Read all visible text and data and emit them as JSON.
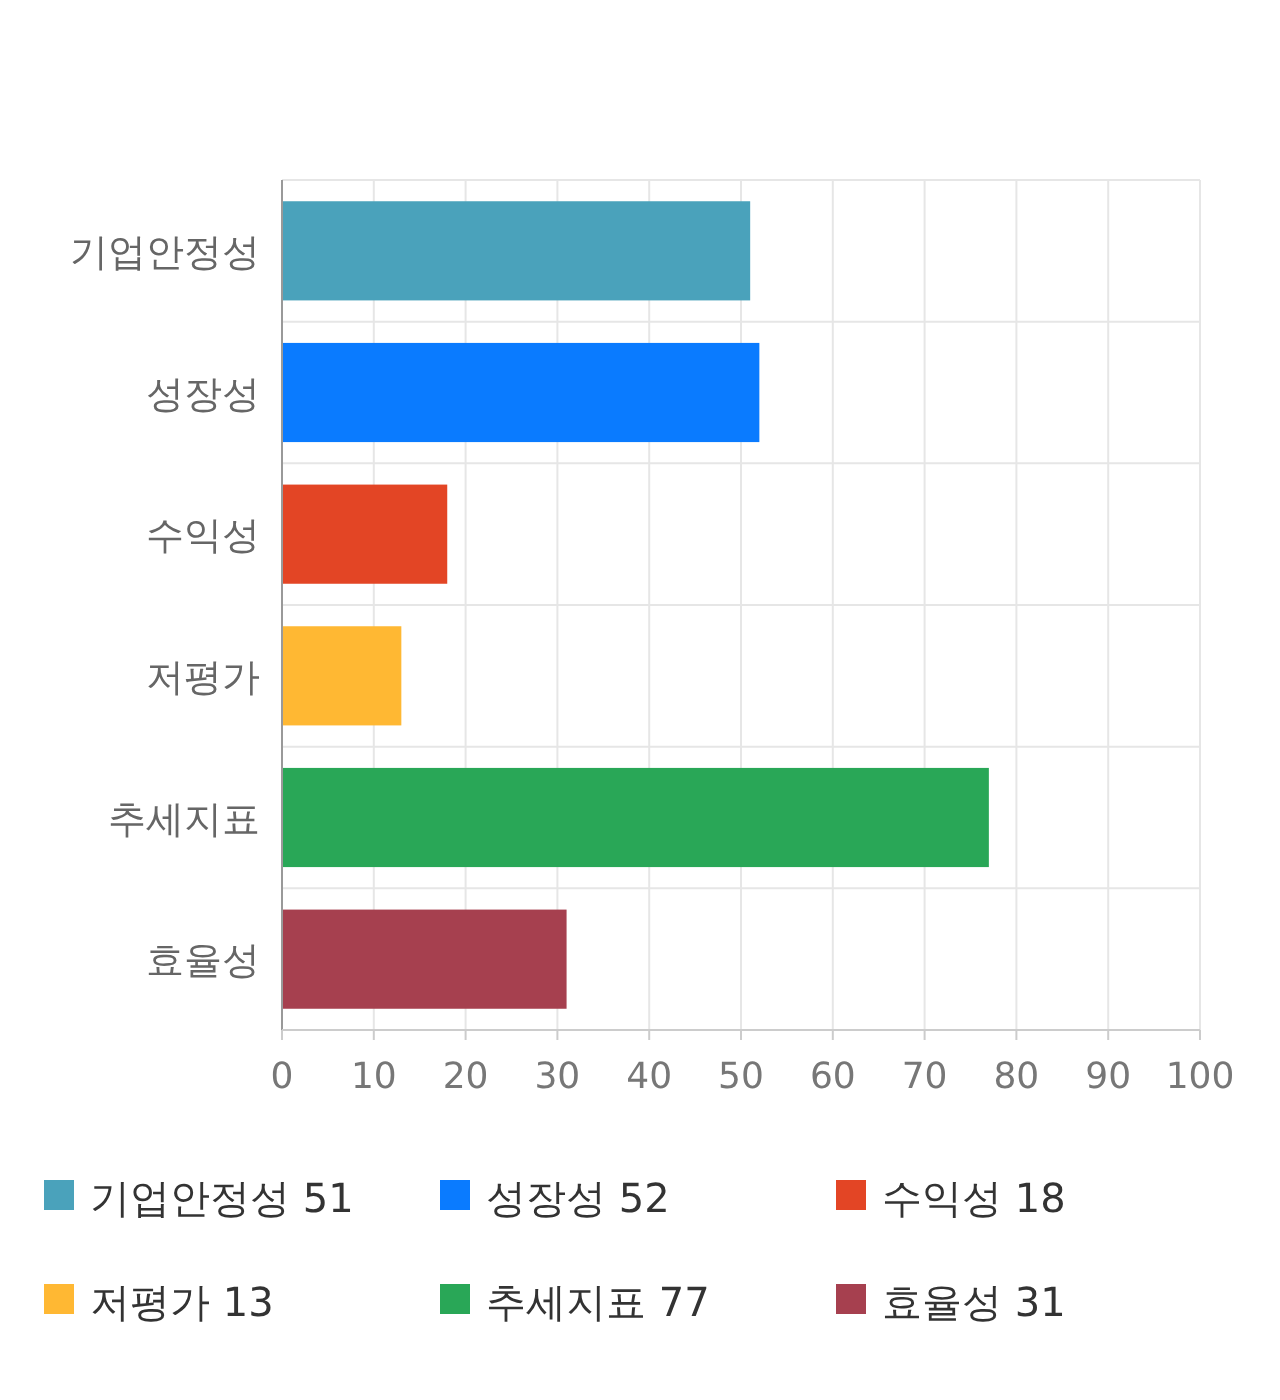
{
  "chart_data": {
    "type": "bar",
    "orientation": "horizontal",
    "stacked": true,
    "categories": [
      "기업안정성",
      "성장성",
      "수익성",
      "저평가",
      "추세지표",
      "효율성"
    ],
    "series": [
      {
        "name": "기업안정성 51",
        "color": "#4aa2bb",
        "values": [
          51,
          null,
          null,
          null,
          null,
          null
        ]
      },
      {
        "name": "성장성 52",
        "color": "#0a7bff",
        "values": [
          null,
          52,
          null,
          null,
          null,
          null
        ]
      },
      {
        "name": "수익성 18",
        "color": "#e34525",
        "values": [
          null,
          null,
          18,
          null,
          null,
          null
        ]
      },
      {
        "name": "저평가 13",
        "color": "#ffb833",
        "values": [
          null,
          null,
          null,
          13,
          null,
          null
        ]
      },
      {
        "name": "추세지표 77",
        "color": "#29a757",
        "values": [
          null,
          null,
          null,
          null,
          77,
          null
        ]
      },
      {
        "name": "효율성 31",
        "color": "#a6404f",
        "values": [
          null,
          null,
          null,
          null,
          null,
          31
        ]
      }
    ],
    "xlim": [
      0,
      100
    ],
    "xticks": [
      0,
      10,
      20,
      30,
      40,
      50,
      60,
      70,
      80,
      90,
      100
    ],
    "grid": true,
    "legend": "bottom"
  }
}
